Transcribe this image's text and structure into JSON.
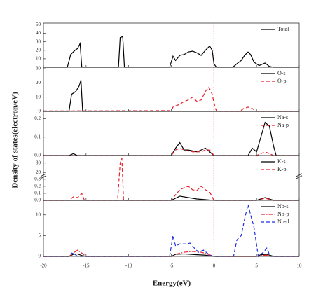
{
  "fermi_level": 0,
  "chart_data": [
    {
      "type": "line",
      "ylim": [
        0,
        52
      ],
      "yticks": [
        10,
        20,
        30,
        40,
        50
      ],
      "series": [
        {
          "name": "Total",
          "color": "#000000",
          "dash": "solid",
          "x": [
            -20,
            -17.2,
            -16.8,
            -16.3,
            -16,
            -15.7,
            -15.5,
            -11.2,
            -11,
            -10.7,
            -10.5,
            -5.2,
            -4.8,
            -4.5,
            -4,
            -3.5,
            -3,
            -2.5,
            -2,
            -1.5,
            -1,
            -0.5,
            -0.2,
            0,
            0.3,
            2.2,
            2.8,
            3.2,
            3.6,
            4,
            4.3,
            4.7,
            5.3,
            6,
            6.5,
            7,
            10
          ],
          "values": [
            0,
            0,
            15,
            20,
            22,
            28,
            0,
            0,
            35,
            36,
            0,
            0,
            13,
            8,
            14,
            15,
            18,
            19,
            17,
            14,
            20,
            25,
            20,
            4,
            0,
            0,
            5,
            8,
            14,
            18,
            15,
            6,
            2,
            5,
            1,
            0,
            0
          ]
        }
      ]
    },
    {
      "type": "line",
      "ylim": [
        0,
        31
      ],
      "yticks": [
        0,
        10,
        20,
        30
      ],
      "series": [
        {
          "name": "O-s",
          "color": "#000000",
          "dash": "solid",
          "x": [
            -20,
            -17,
            -16.7,
            -16.2,
            -15.8,
            -15.6,
            -15.4,
            10
          ],
          "values": [
            0,
            0,
            12,
            14,
            18,
            22,
            0,
            0
          ]
        },
        {
          "name": "O-p",
          "color": "#e8202a",
          "dash": "dashed",
          "x": [
            -20,
            -5,
            -4.8,
            -4,
            -3.5,
            -3,
            -2.5,
            -2,
            -1.5,
            -1,
            -0.6,
            -0.2,
            0,
            0.3,
            3,
            3.5,
            4,
            4.5,
            5,
            10
          ],
          "values": [
            0.3,
            0.5,
            3,
            5,
            7,
            8,
            10,
            7,
            8,
            14,
            17,
            12,
            6,
            0,
            0,
            2,
            3,
            2,
            0,
            0
          ]
        }
      ]
    },
    {
      "type": "line",
      "ylim": [
        0,
        0.24
      ],
      "yticks": [
        {
          "value": 0,
          "label": "0.0"
        },
        0.1,
        0.2
      ],
      "ylabel": "Density of states(electron/eV)",
      "series": [
        {
          "name": "Na-s",
          "color": "#000000",
          "dash": "solid",
          "x": [
            -20,
            -17,
            -16.5,
            -16,
            -5,
            -4.5,
            -4,
            -3.5,
            -3,
            -2,
            -1.5,
            -1,
            -0.5,
            0,
            4,
            4.5,
            5,
            5.5,
            6,
            6.5,
            7,
            7.3,
            10
          ],
          "values": [
            0,
            0,
            0.01,
            0,
            0,
            0.04,
            0.07,
            0.03,
            0.03,
            0.02,
            0.03,
            0.04,
            0.02,
            0,
            0,
            0.04,
            0.02,
            0.1,
            0.18,
            0.16,
            0.05,
            0,
            0
          ]
        },
        {
          "name": "Na-p",
          "color": "#e8202a",
          "dash": "dashed",
          "x": [
            -20,
            -5,
            -4.5,
            -4,
            -3.5,
            -2.5,
            -1.5,
            -1,
            -0.5,
            0,
            5,
            5.5,
            6,
            6.5,
            7,
            10
          ],
          "values": [
            0,
            0,
            0.03,
            0.04,
            0.03,
            0.02,
            0.02,
            0.03,
            0.03,
            0,
            0,
            0.01,
            0.02,
            0.01,
            0,
            0
          ]
        }
      ]
    },
    {
      "type": "line",
      "ylim": [
        0,
        38
      ],
      "ybreak": [
        0.35,
        18
      ],
      "yticks": [
        {
          "value": 0,
          "label": "0.0"
        },
        0.1,
        0.2,
        0.3,
        20,
        30
      ],
      "series": [
        {
          "name": "K-s",
          "color": "#000000",
          "dash": "solid",
          "x": [
            -20,
            -5,
            -4.5,
            -4,
            -3,
            -2,
            0,
            5,
            6,
            7,
            10
          ],
          "values": [
            0,
            0,
            0.03,
            0.06,
            0.04,
            0.02,
            0,
            0,
            0.04,
            0,
            0
          ]
        },
        {
          "name": "K-p",
          "color": "#e8202a",
          "dash": "dashed",
          "x": [
            -20,
            -17,
            -16.5,
            -16,
            -15.5,
            -15.2,
            -11.3,
            -11,
            -10.8,
            -10.6,
            -5,
            -4.5,
            -4,
            -3.5,
            -3,
            -2.5,
            -2,
            -1.5,
            -1,
            -0.5,
            0,
            5,
            6,
            7,
            10
          ],
          "values": [
            0,
            0,
            0.05,
            0.04,
            0.1,
            0,
            0,
            30,
            35,
            0,
            0,
            0.08,
            0.15,
            0.18,
            0.2,
            0.15,
            0.14,
            0.2,
            0.15,
            0.12,
            0,
            0,
            0.03,
            0,
            0
          ]
        }
      ]
    },
    {
      "type": "line",
      "ylim": [
        0,
        13.5
      ],
      "yticks": [
        0,
        5,
        10
      ],
      "xlim": [
        -20,
        10
      ],
      "xticks": [
        -20,
        -15,
        -10,
        -5,
        0,
        5,
        10
      ],
      "xlabel": "Energy(eV)",
      "series": [
        {
          "name": "Nb-s",
          "color": "#000000",
          "dash": "solid",
          "x": [
            -20,
            -17,
            -16.5,
            -16,
            -15.5,
            -15,
            -5,
            -4.5,
            -3.5,
            -2,
            -1,
            0,
            5,
            5.5,
            6.2,
            7,
            10
          ],
          "values": [
            0,
            0,
            0.5,
            0.6,
            0.2,
            0,
            0,
            0.5,
            0.6,
            0.4,
            0.3,
            0,
            0,
            0.4,
            0.5,
            0,
            0
          ]
        },
        {
          "name": "Nb-p",
          "color": "#e8202a",
          "dash": "dashdot",
          "x": [
            -20,
            -17,
            -16.5,
            -16,
            -15.5,
            -15,
            -5,
            -4.5,
            -3.5,
            -2.5,
            -1.5,
            -0.8,
            0,
            5,
            6,
            7,
            10
          ],
          "values": [
            0,
            0,
            0.8,
            1.5,
            0.8,
            0,
            0,
            0.5,
            1,
            1.2,
            1,
            0.6,
            0,
            0,
            0.3,
            0,
            0
          ]
        },
        {
          "name": "Nb-d",
          "color": "#1f2ee0",
          "dash": "dashed",
          "x": [
            -20,
            -17,
            -16.7,
            -16.3,
            -16,
            -5.2,
            -4.8,
            -4.5,
            -4,
            -3.2,
            -2.8,
            -2.3,
            -1.8,
            -1.2,
            -0.5,
            0,
            2.3,
            2.7,
            3.2,
            3.6,
            4,
            4.3,
            4.7,
            5.2,
            5.8,
            6.2,
            6.6,
            10
          ],
          "values": [
            0,
            0,
            0.8,
            0.5,
            0,
            0,
            5,
            2.5,
            3,
            3,
            3.2,
            2,
            1,
            1.5,
            0.3,
            0,
            0,
            4,
            5,
            9,
            12.5,
            10,
            7,
            0,
            1,
            2,
            0,
            0
          ]
        }
      ]
    }
  ]
}
